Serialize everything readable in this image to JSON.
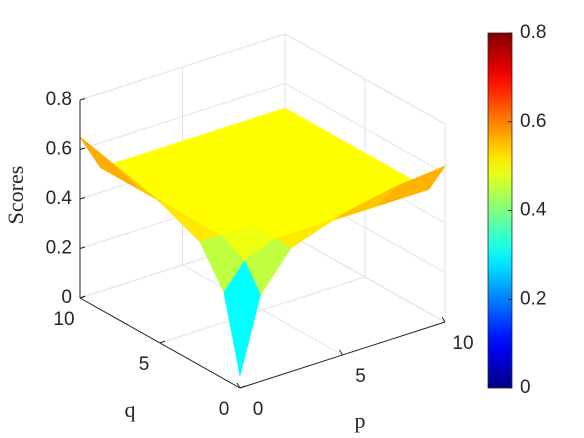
{
  "chart_data": {
    "type": "surface",
    "xlabel": "p",
    "ylabel": "q",
    "zlabel": "Scores",
    "x": [
      0,
      1,
      2.5,
      5,
      7.5,
      10
    ],
    "y": [
      0,
      1,
      2.5,
      5,
      7.5,
      10
    ],
    "z": [
      [
        0.05,
        0.35,
        0.5,
        0.57,
        0.61,
        0.63
      ],
      [
        0.35,
        0.45,
        0.5,
        0.5,
        0.5,
        0.5
      ],
      [
        0.5,
        0.5,
        0.5,
        0.5,
        0.5,
        0.5
      ],
      [
        0.57,
        0.5,
        0.5,
        0.5,
        0.5,
        0.5
      ],
      [
        0.61,
        0.5,
        0.5,
        0.5,
        0.5,
        0.5
      ],
      [
        0.65,
        0.5,
        0.5,
        0.5,
        0.5,
        0.5
      ]
    ],
    "xlim": [
      0,
      10
    ],
    "ylim": [
      0,
      10
    ],
    "zlim": [
      0,
      0.8
    ],
    "xticks": [
      0,
      5,
      10
    ],
    "yticks": [
      0,
      5,
      10
    ],
    "zticks": [
      0,
      0.2,
      0.4,
      0.6,
      0.8
    ],
    "colormap": "jet",
    "colorbar": {
      "lim": [
        0,
        0.8
      ],
      "ticks": [
        0,
        0.2,
        0.4,
        0.6,
        0.8
      ]
    },
    "grid": true
  }
}
